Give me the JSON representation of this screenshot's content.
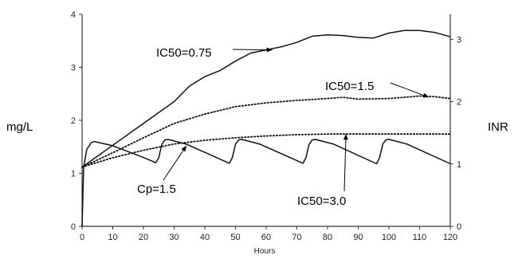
{
  "chart_data": {
    "type": "line",
    "xlabel": "Hours",
    "y_left_label": "mg/L",
    "y_right_label": "INR",
    "xlim": [
      0,
      120
    ],
    "ylim_left": [
      0,
      4
    ],
    "ylim_right": [
      0,
      3.4
    ],
    "x_ticks": [
      "0",
      "10",
      "20",
      "30",
      "40",
      "50",
      "60",
      "70",
      "80",
      "90",
      "100",
      "110",
      "120"
    ],
    "y_left_ticks": [
      "0",
      "1",
      "2",
      "3",
      "4"
    ],
    "y_right_ticks": [
      "0",
      "1",
      "2",
      "3"
    ],
    "series": [
      {
        "name": "Cp=1.5",
        "axis": "left",
        "style": "solid",
        "points": [
          [
            0,
            0
          ],
          [
            0.5,
            1.1
          ],
          [
            1.5,
            1.45
          ],
          [
            3,
            1.58
          ],
          [
            4,
            1.6
          ],
          [
            10,
            1.52
          ],
          [
            20,
            1.3
          ],
          [
            24,
            1.2
          ],
          [
            25,
            1.3
          ],
          [
            26,
            1.55
          ],
          [
            27,
            1.63
          ],
          [
            28,
            1.64
          ],
          [
            34,
            1.55
          ],
          [
            48,
            1.19
          ],
          [
            49,
            1.3
          ],
          [
            50,
            1.55
          ],
          [
            51,
            1.63
          ],
          [
            52,
            1.64
          ],
          [
            58,
            1.55
          ],
          [
            72,
            1.19
          ],
          [
            73,
            1.3
          ],
          [
            74,
            1.55
          ],
          [
            75,
            1.63
          ],
          [
            76,
            1.64
          ],
          [
            82,
            1.55
          ],
          [
            96,
            1.18
          ],
          [
            97,
            1.3
          ],
          [
            98,
            1.55
          ],
          [
            99,
            1.63
          ],
          [
            100,
            1.64
          ],
          [
            106,
            1.55
          ],
          [
            120,
            1.18
          ]
        ]
      },
      {
        "name": "IC50=0.75",
        "axis": "right",
        "style": "solid",
        "points": [
          [
            0,
            0.95
          ],
          [
            10,
            1.3
          ],
          [
            20,
            1.65
          ],
          [
            30,
            2.0
          ],
          [
            35,
            2.25
          ],
          [
            40,
            2.4
          ],
          [
            45,
            2.5
          ],
          [
            50,
            2.65
          ],
          [
            55,
            2.78
          ],
          [
            60,
            2.83
          ],
          [
            65,
            2.88
          ],
          [
            70,
            2.95
          ],
          [
            75,
            3.05
          ],
          [
            80,
            3.07
          ],
          [
            85,
            3.06
          ],
          [
            90,
            3.03
          ],
          [
            95,
            3.02
          ],
          [
            100,
            3.1
          ],
          [
            105,
            3.14
          ],
          [
            110,
            3.14
          ],
          [
            115,
            3.11
          ],
          [
            120,
            3.04
          ]
        ]
      },
      {
        "name": "IC50=1.5",
        "axis": "right",
        "style": "dotted",
        "points": [
          [
            0,
            0.95
          ],
          [
            10,
            1.18
          ],
          [
            20,
            1.42
          ],
          [
            30,
            1.65
          ],
          [
            40,
            1.8
          ],
          [
            50,
            1.92
          ],
          [
            60,
            1.98
          ],
          [
            70,
            2.02
          ],
          [
            80,
            2.05
          ],
          [
            85,
            2.07
          ],
          [
            90,
            2.04
          ],
          [
            100,
            2.05
          ],
          [
            110,
            2.09
          ],
          [
            115,
            2.08
          ],
          [
            120,
            2.05
          ]
        ]
      },
      {
        "name": "IC50=3.0",
        "axis": "right",
        "style": "dotted",
        "points": [
          [
            0,
            0.95
          ],
          [
            10,
            1.1
          ],
          [
            20,
            1.22
          ],
          [
            30,
            1.32
          ],
          [
            40,
            1.38
          ],
          [
            50,
            1.42
          ],
          [
            60,
            1.45
          ],
          [
            70,
            1.47
          ],
          [
            80,
            1.48
          ],
          [
            90,
            1.48
          ],
          [
            100,
            1.48
          ],
          [
            110,
            1.48
          ],
          [
            120,
            1.48
          ]
        ]
      }
    ],
    "annotations": [
      {
        "text": "IC50=0.75",
        "arrow_to": [
          62,
          2.83
        ],
        "axis": "right"
      },
      {
        "text": "IC50=1.5",
        "arrow_to": [
          113,
          2.07
        ],
        "axis": "right"
      },
      {
        "text": "IC50=3.0",
        "arrow_to": [
          86,
          1.48
        ],
        "axis": "right"
      },
      {
        "text": "Cp=1.5",
        "arrow_to": [
          34,
          1.52
        ],
        "axis": "left"
      }
    ],
    "grid": false
  }
}
